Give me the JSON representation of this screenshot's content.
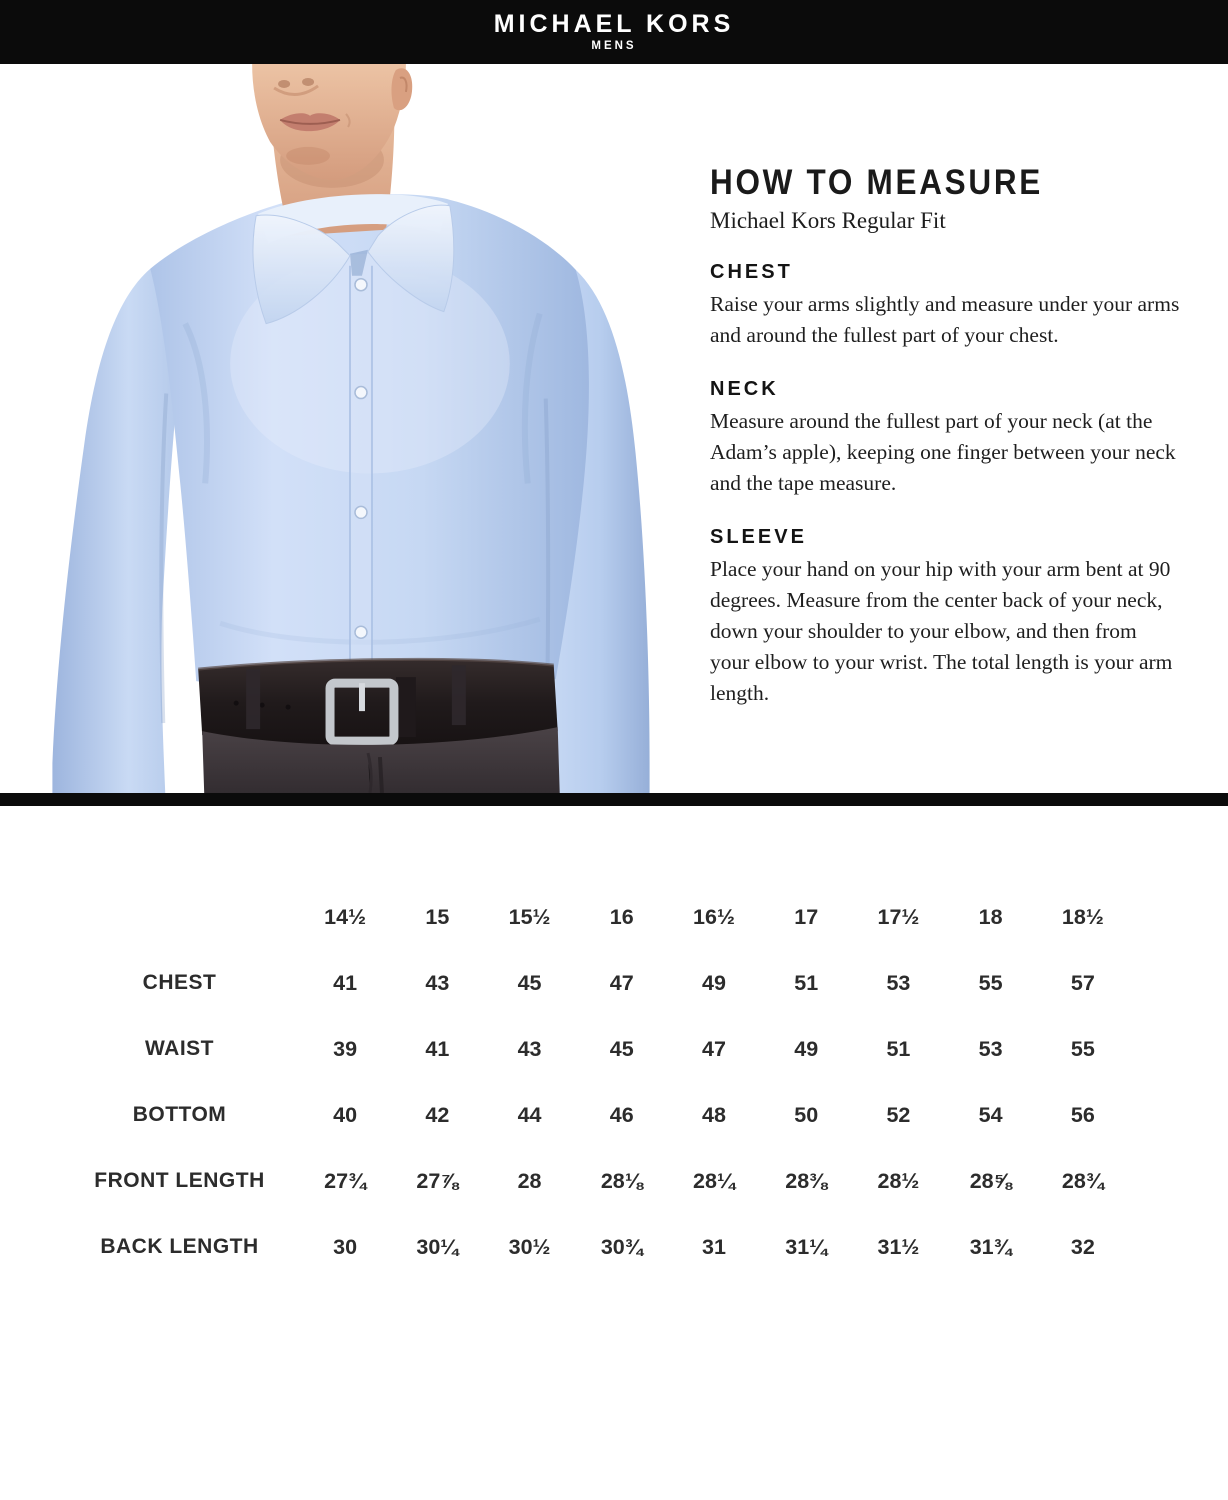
{
  "header": {
    "brand": "MICHAEL KORS",
    "sub_brand": "MENS"
  },
  "measure_guide": {
    "title": "HOW TO MEASURE",
    "subtitle": "Michael Kors Regular Fit",
    "sections": [
      {
        "heading": "CHEST",
        "body": "Raise your arms slightly and measure under your arms and around the fullest part of your chest."
      },
      {
        "heading": "NECK",
        "body": "Measure around the fullest part of your neck (at the Adam’s apple), keeping one finger between your neck and the tape measure."
      },
      {
        "heading": "SLEEVE",
        "body": "Place your hand on your hip with your arm bent at 90 degrees. Measure from the center back of your neck, down your shoulder to your elbow, and then from your elbow to your wrist. The total length is your arm length."
      }
    ]
  },
  "size_chart": {
    "columns": [
      "14½",
      "15",
      "15½",
      "16",
      "16½",
      "17",
      "17½",
      "18",
      "18½"
    ],
    "rows": [
      {
        "label": "CHEST",
        "values": [
          "41",
          "43",
          "45",
          "47",
          "49",
          "51",
          "53",
          "55",
          "57"
        ]
      },
      {
        "label": "WAIST",
        "values": [
          "39",
          "41",
          "43",
          "45",
          "47",
          "49",
          "51",
          "53",
          "55"
        ]
      },
      {
        "label": "BOTTOM",
        "values": [
          "40",
          "42",
          "44",
          "46",
          "48",
          "50",
          "52",
          "54",
          "56"
        ]
      },
      {
        "label": "FRONT LENGTH",
        "values": [
          "27¾",
          "27⅞",
          "28",
          "28⅛",
          "28¼",
          "28⅜",
          "28½",
          "28⅝",
          "28¾"
        ]
      },
      {
        "label": "BACK LENGTH",
        "values": [
          "30",
          "30¼",
          "30½",
          "30¾",
          "31",
          "31¼",
          "31½",
          "31¾",
          "32"
        ]
      }
    ]
  },
  "colors": {
    "bar_black": "#0b0b0b",
    "shirt_blue": "#c5d7f2",
    "text_dark": "#1e1e1e"
  }
}
